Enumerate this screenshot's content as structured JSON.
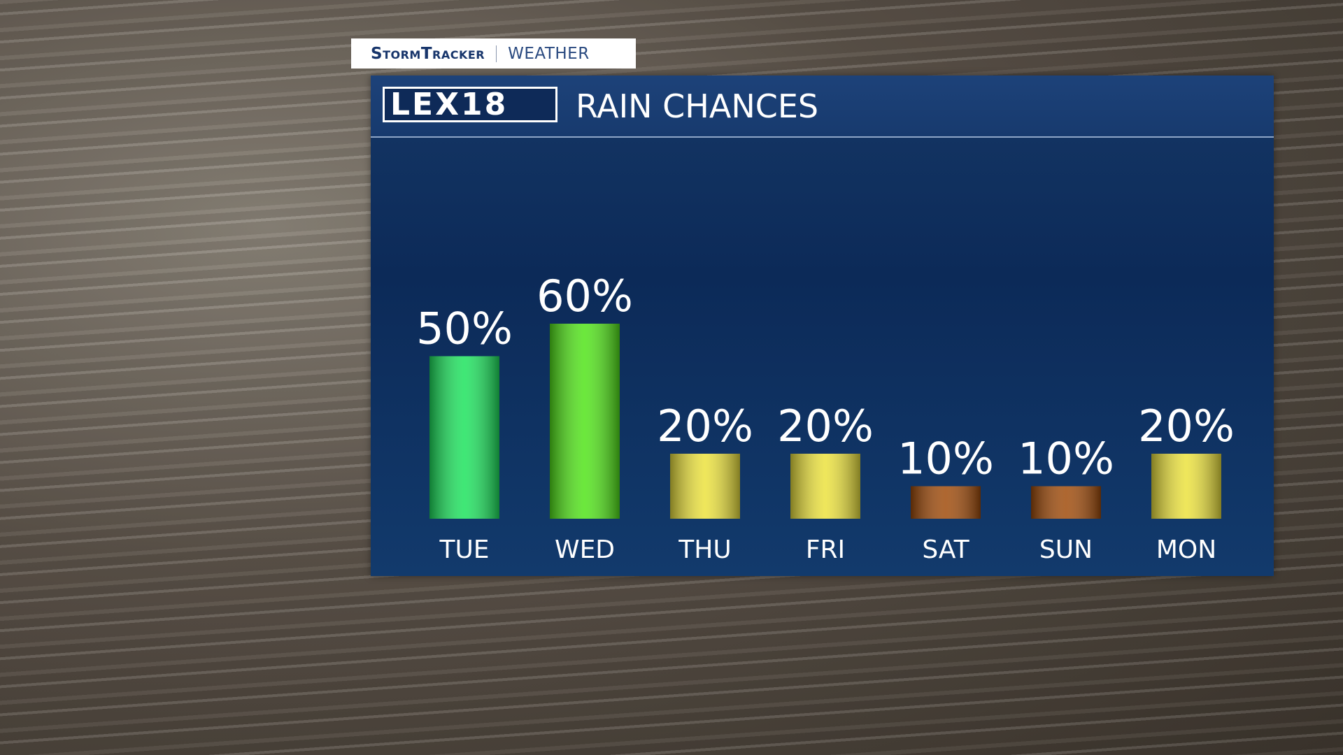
{
  "branding": {
    "program": "StormTracker",
    "section": "WEATHER",
    "station": "LEX18"
  },
  "chart_data": {
    "type": "bar",
    "title": "RAIN CHANCES",
    "categories": [
      "TUE",
      "WED",
      "THU",
      "FRI",
      "SAT",
      "SUN",
      "MON"
    ],
    "values": [
      50,
      60,
      20,
      20,
      10,
      10,
      20
    ],
    "value_labels": [
      "50%",
      "60%",
      "20%",
      "20%",
      "10%",
      "10%",
      "20%"
    ],
    "colors": [
      "#1ee35e",
      "#52e41a",
      "#ece23e",
      "#ece23e",
      "#a04c0c",
      "#a04c0c",
      "#ece23e"
    ]
  }
}
